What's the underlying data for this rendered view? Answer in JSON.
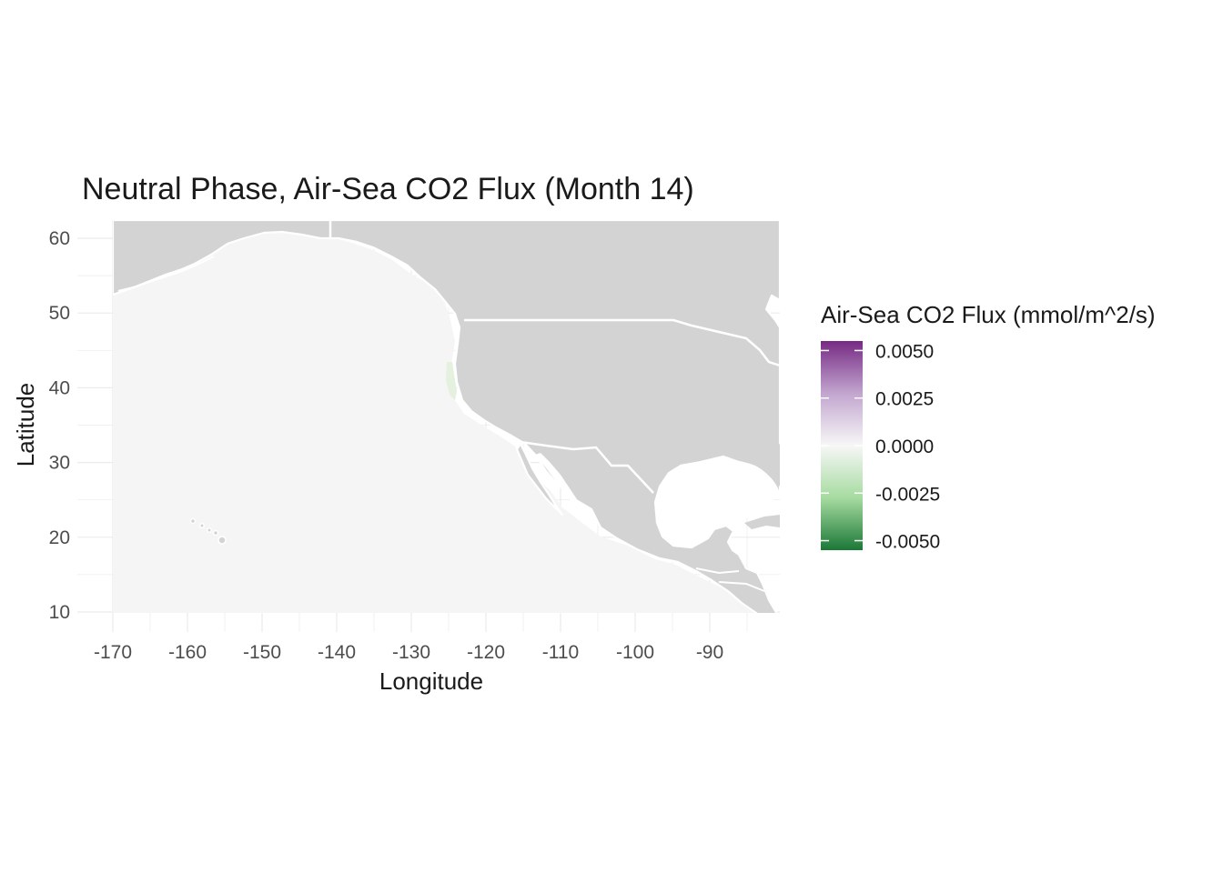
{
  "chart_data": {
    "type": "heatmap",
    "title": "Neutral Phase, Air-Sea CO2 Flux (Month 14)",
    "xlabel": "Longitude",
    "ylabel": "Latitude",
    "xlim": [
      -174,
      -81
    ],
    "ylim": [
      7.5,
      62.5
    ],
    "x_ticks": [
      "-170",
      "-160",
      "-150",
      "-140",
      "-130",
      "-120",
      "-110",
      "-100",
      "-90"
    ],
    "x_tick_values": [
      -170,
      -160,
      -150,
      -140,
      -130,
      -120,
      -110,
      -100,
      -90
    ],
    "y_ticks": [
      "60",
      "50",
      "40",
      "30",
      "20",
      "10"
    ],
    "y_tick_values": [
      60,
      50,
      40,
      30,
      20,
      10
    ],
    "grid": true,
    "land_color": "#d3d3d3",
    "ocean_color": "#f5f5f5",
    "notable_region": {
      "description": "slight negative flux near US west coast",
      "lon": -124.8,
      "lat_range": [
        38,
        43
      ],
      "value": -0.0006
    },
    "legend": {
      "title": "Air-Sea CO2 Flux (mmol/m^2/s)",
      "placement": "right",
      "range": [
        -0.0055,
        0.0055
      ],
      "ticks": [
        "0.0050",
        "0.0025",
        "0.0000",
        "-0.0025",
        "-0.0050"
      ],
      "tick_values": [
        0.005,
        0.0025,
        0.0,
        -0.0025,
        -0.005
      ],
      "colors": [
        "#762a83",
        "#c2a5cf",
        "#f7f7f7",
        "#a6dba0",
        "#1b7837"
      ]
    }
  }
}
